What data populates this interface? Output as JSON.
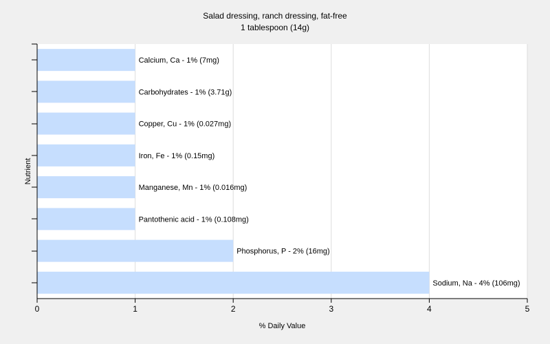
{
  "chart_data": {
    "type": "bar",
    "orientation": "horizontal",
    "title": "Salad dressing, ranch dressing, fat-free",
    "subtitle": "1 tablespoon (14g)",
    "xlabel": "% Daily Value",
    "ylabel": "Nutrient",
    "xlim": [
      0,
      5
    ],
    "xticks": [
      "0",
      "1",
      "2",
      "3",
      "4",
      "5"
    ],
    "grid": true,
    "bar_color": "#c6defe",
    "categories": [
      "Calcium, Ca",
      "Carbohydrates",
      "Copper, Cu",
      "Iron, Fe",
      "Manganese, Mn",
      "Pantothenic acid",
      "Phosphorus, P",
      "Sodium, Na"
    ],
    "values": [
      1,
      1,
      1,
      1,
      1,
      1,
      2,
      4
    ],
    "labels": [
      "Calcium, Ca - 1% (7mg)",
      "Carbohydrates - 1% (3.71g)",
      "Copper, Cu - 1% (0.027mg)",
      "Iron, Fe - 1% (0.15mg)",
      "Manganese, Mn - 1% (0.016mg)",
      "Pantothenic acid - 1% (0.108mg)",
      "Phosphorus, P - 2% (16mg)",
      "Sodium, Na - 4% (106mg)"
    ]
  }
}
